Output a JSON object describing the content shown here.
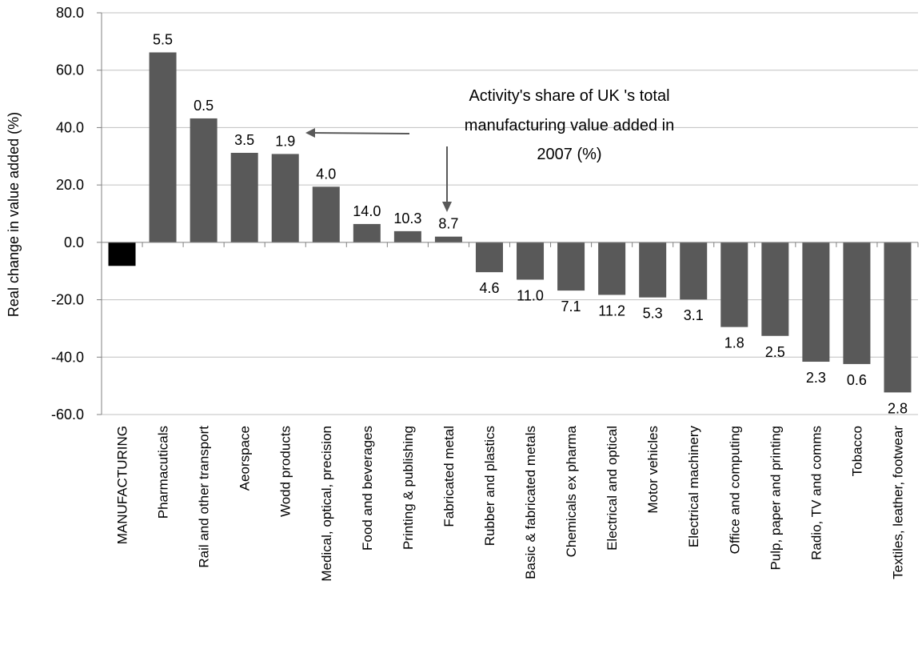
{
  "chart_data": {
    "type": "bar",
    "title": "",
    "xlabel": "",
    "ylabel": "Real change in value added (%)",
    "ylim": [
      -60,
      80
    ],
    "yticks": [
      "80.0",
      "60.0",
      "40.0",
      "20.0",
      "0.0",
      "-20.0",
      "-40.0",
      "-60.0"
    ],
    "grid": true,
    "categories": [
      "MANUFACTURING",
      "Pharmacuticals",
      "Rail and other transport",
      "Aeorspace",
      "Wodd products",
      "Medical, optical, precision",
      "Food and beverages",
      "Printing & publishing",
      "Fabricated metal",
      "Rubber and plastics",
      "Basic & fabricated metals",
      "Chemicals ex pharma",
      "Electrical and optical",
      "Motor vehicles",
      "Electrical machinery",
      "Office and computing",
      "Pulp, paper and printing",
      "Radio, TV and comms",
      "Tobacco",
      "Textiles, leather, footwear"
    ],
    "values": [
      -8.2,
      66.2,
      43.2,
      31.2,
      30.8,
      19.4,
      6.4,
      3.9,
      2.0,
      -10.4,
      -13.0,
      -16.8,
      -18.3,
      -19.2,
      -19.9,
      -29.5,
      -32.6,
      -41.6,
      -42.4,
      -52.3
    ],
    "data_labels": [
      "",
      "5.5",
      "0.5",
      "3.5",
      "1.9",
      "4.0",
      "14.0",
      "10.3",
      "8.7",
      "4.6",
      "11.0",
      "7.1",
      "11.2",
      "5.3",
      "3.1",
      "1.8",
      "2.5",
      "2.3",
      "0.6",
      "2.8"
    ],
    "colors": {
      "bar": "#595959",
      "highlight": "#000000",
      "gridline": "#c0c0c0",
      "axis": "#808080"
    },
    "annotation": {
      "lines": [
        "Activity's share of UK 's total",
        "manufacturing value added  in",
        "2007 (%)"
      ]
    }
  }
}
